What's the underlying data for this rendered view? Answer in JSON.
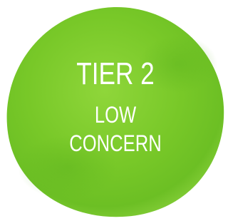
{
  "badge": {
    "title": "TIER 2",
    "lines": [
      "LOW",
      "CONCERN"
    ]
  }
}
